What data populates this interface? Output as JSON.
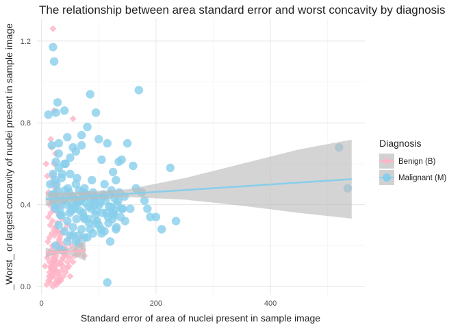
{
  "chart_data": {
    "type": "scatter",
    "title": "The relationship between area standard error and worst concavity by diagnosis",
    "xlabel": "Standard error of area of nuclei present in sample image",
    "ylabel": "_Worst_ or largest concavity of nuclei present in sample image",
    "xlim": [
      -8,
      565
    ],
    "ylim": [
      -0.04,
      1.31
    ],
    "x_ticks": [
      0,
      200,
      400
    ],
    "y_ticks": [
      0.0,
      0.4,
      0.8,
      1.2
    ],
    "y_tick_labels": [
      "0.0",
      "0.4",
      "0.8",
      "1.2"
    ],
    "grid": true,
    "legend": {
      "title": "Diagnosis",
      "placement": "right",
      "entries": [
        "Benign (B)",
        "Malignant (M)"
      ]
    },
    "colors": {
      "benign": "#ffb3c6",
      "malignant": "#87ceeb",
      "ribbon": "#bdbdbd"
    },
    "series": [
      {
        "name": "Benign (B)",
        "marker": "diamond",
        "trend": {
          "x0": 7.2,
          "y0": 0.165,
          "x1": 77,
          "y1": 0.175
        },
        "ribbon": {
          "x": [
            7.2,
            20,
            35,
            50,
            65,
            77
          ],
          "lower": [
            0.14,
            0.155,
            0.16,
            0.155,
            0.14,
            0.125
          ],
          "upper": [
            0.19,
            0.178,
            0.18,
            0.19,
            0.21,
            0.225
          ]
        },
        "x": [
          15,
          18,
          22,
          25,
          28,
          30,
          12,
          14,
          16,
          20,
          24,
          26,
          32,
          35,
          38,
          10,
          13,
          17,
          19,
          21,
          23,
          27,
          29,
          31,
          33,
          36,
          40,
          42,
          45,
          48,
          11,
          14,
          18,
          22,
          26,
          30,
          34,
          38,
          15,
          19,
          23,
          27,
          31,
          35,
          12,
          16,
          20,
          24,
          28,
          32,
          36,
          40,
          44,
          50,
          55,
          60,
          65,
          70,
          75,
          9,
          13,
          17,
          21,
          25,
          29,
          33,
          37,
          41,
          46,
          52,
          58,
          62,
          68,
          72,
          14,
          18,
          22,
          26,
          30,
          20,
          22,
          24,
          18,
          16,
          28,
          34,
          20,
          24,
          16,
          18,
          22,
          26,
          30,
          20,
          25,
          35,
          40,
          45,
          50,
          55,
          28,
          32,
          36,
          12,
          10,
          8,
          6,
          50,
          45,
          20,
          22,
          28,
          32,
          14,
          16,
          18,
          22,
          26,
          30,
          34,
          38,
          42,
          18,
          20,
          24,
          20,
          17,
          19,
          21,
          23,
          25
        ],
        "y": [
          0.02,
          0.05,
          0.08,
          0.1,
          0.12,
          0.06,
          0.03,
          0.07,
          0.09,
          0.11,
          0.13,
          0.15,
          0.04,
          0.08,
          0.1,
          0.14,
          0.16,
          0.18,
          0.2,
          0.12,
          0.14,
          0.17,
          0.19,
          0.21,
          0.11,
          0.13,
          0.15,
          0.18,
          0.12,
          0.1,
          0.22,
          0.24,
          0.26,
          0.28,
          0.2,
          0.22,
          0.18,
          0.16,
          0.3,
          0.32,
          0.25,
          0.27,
          0.23,
          0.21,
          0.34,
          0.36,
          0.38,
          0.29,
          0.31,
          0.26,
          0.19,
          0.17,
          0.15,
          0.14,
          0.12,
          0.18,
          0.16,
          0.2,
          0.15,
          0.01,
          0.05,
          0.09,
          0.13,
          0.17,
          0.07,
          0.11,
          0.14,
          0.19,
          0.23,
          0.2,
          0.15,
          0.22,
          0.24,
          0.18,
          0.4,
          0.42,
          0.45,
          0.5,
          0.35,
          0.55,
          0.6,
          0.65,
          0.68,
          0.72,
          0.47,
          0.39,
          0.0,
          0.02,
          0.04,
          0.06,
          0.08,
          0.01,
          0.03,
          0.44,
          0.37,
          0.33,
          0.28,
          0.3,
          0.25,
          0.82,
          0.27,
          0.24,
          0.26,
          0.46,
          0.54,
          0.6,
          0.1,
          0.05,
          0.09,
          1.26,
          0.86,
          0.43,
          0.35,
          0.12,
          0.1,
          0.08,
          0.06,
          0.04,
          0.02,
          0.03,
          0.05,
          0.07,
          0.5,
          0.53,
          0.48,
          0.14,
          0.09,
          0.12,
          0.16,
          0.1,
          0.08
        ]
      },
      {
        "name": "Malignant (M)",
        "marker": "circle",
        "trend": {
          "x0": 7.2,
          "y0": 0.427,
          "x1": 542,
          "y1": 0.525
        },
        "ribbon": {
          "x": [
            7.2,
            40,
            80,
            150,
            250,
            350,
            450,
            542
          ],
          "lower": [
            0.395,
            0.41,
            0.425,
            0.437,
            0.425,
            0.395,
            0.36,
            0.332
          ],
          "upper": [
            0.46,
            0.46,
            0.465,
            0.475,
            0.53,
            0.6,
            0.67,
            0.718
          ]
        },
        "x": [
          12,
          20,
          22,
          25,
          28,
          30,
          18,
          25,
          30,
          35,
          40,
          45,
          50,
          55,
          60,
          65,
          70,
          75,
          80,
          85,
          90,
          95,
          100,
          105,
          110,
          115,
          120,
          125,
          130,
          135,
          140,
          145,
          150,
          155,
          160,
          165,
          170,
          175,
          180,
          185,
          190,
          200,
          210,
          225,
          235,
          520,
          535,
          22,
          24,
          26,
          28,
          32,
          36,
          38,
          42,
          46,
          48,
          52,
          56,
          58,
          62,
          66,
          68,
          72,
          76,
          78,
          82,
          86,
          88,
          92,
          96,
          98,
          102,
          106,
          108,
          112,
          116,
          118,
          122,
          126,
          128,
          132,
          136,
          140,
          15,
          18,
          20,
          24,
          27,
          33,
          37,
          41,
          44,
          49,
          53,
          57,
          61,
          64,
          67,
          71,
          74,
          79,
          83,
          87,
          91,
          94,
          97,
          101,
          104,
          109,
          113,
          117,
          121,
          124,
          127,
          131,
          134,
          138,
          142,
          146,
          30,
          40,
          50,
          60,
          70,
          80,
          90,
          100,
          110,
          120,
          130,
          35,
          45,
          55,
          65,
          75,
          85,
          95,
          105,
          115,
          125,
          20,
          30,
          40,
          50,
          60,
          70,
          25,
          35,
          45,
          55,
          65,
          75,
          22,
          32,
          42,
          52,
          62,
          72,
          82,
          92
        ],
        "y": [
          0.84,
          1.17,
          1.1,
          0.85,
          0.9,
          0.7,
          0.69,
          0.61,
          0.65,
          0.53,
          0.86,
          0.73,
          0.55,
          0.68,
          0.5,
          0.42,
          0.74,
          0.48,
          0.78,
          0.94,
          0.46,
          0.85,
          0.72,
          0.62,
          0.5,
          0.7,
          0.45,
          0.56,
          0.52,
          0.61,
          0.62,
          0.44,
          0.7,
          0.38,
          0.59,
          0.48,
          0.96,
          0.46,
          0.42,
          0.38,
          0.34,
          0.34,
          0.28,
          0.58,
          0.32,
          0.68,
          0.48,
          0.45,
          0.52,
          0.5,
          0.47,
          0.44,
          0.55,
          0.42,
          0.6,
          0.48,
          0.46,
          0.4,
          0.44,
          0.38,
          0.53,
          0.47,
          0.42,
          0.36,
          0.41,
          0.45,
          0.33,
          0.43,
          0.52,
          0.4,
          0.37,
          0.44,
          0.41,
          0.36,
          0.45,
          0.42,
          0.34,
          0.39,
          0.47,
          0.35,
          0.43,
          0.4,
          0.46,
          0.38,
          0.5,
          0.45,
          0.43,
          0.38,
          0.41,
          0.35,
          0.42,
          0.47,
          0.4,
          0.36,
          0.44,
          0.39,
          0.33,
          0.41,
          0.37,
          0.43,
          0.34,
          0.45,
          0.31,
          0.38,
          0.42,
          0.35,
          0.32,
          0.4,
          0.28,
          0.44,
          0.36,
          0.31,
          0.39,
          0.33,
          0.37,
          0.29,
          0.42,
          0.34,
          0.38,
          0.32,
          0.3,
          0.27,
          0.25,
          0.22,
          0.28,
          0.24,
          0.26,
          0.3,
          0.27,
          0.22,
          0.28,
          0.35,
          0.32,
          0.29,
          0.25,
          0.33,
          0.28,
          0.31,
          0.26,
          0.02,
          0.36,
          0.55,
          0.58,
          0.6,
          0.63,
          0.66,
          0.69,
          0.2,
          0.18,
          0.22,
          0.25,
          0.21,
          0.24,
          0.4,
          0.38,
          0.43,
          0.37,
          0.41,
          0.46,
          0.39,
          0.44
        ]
      }
    ]
  }
}
